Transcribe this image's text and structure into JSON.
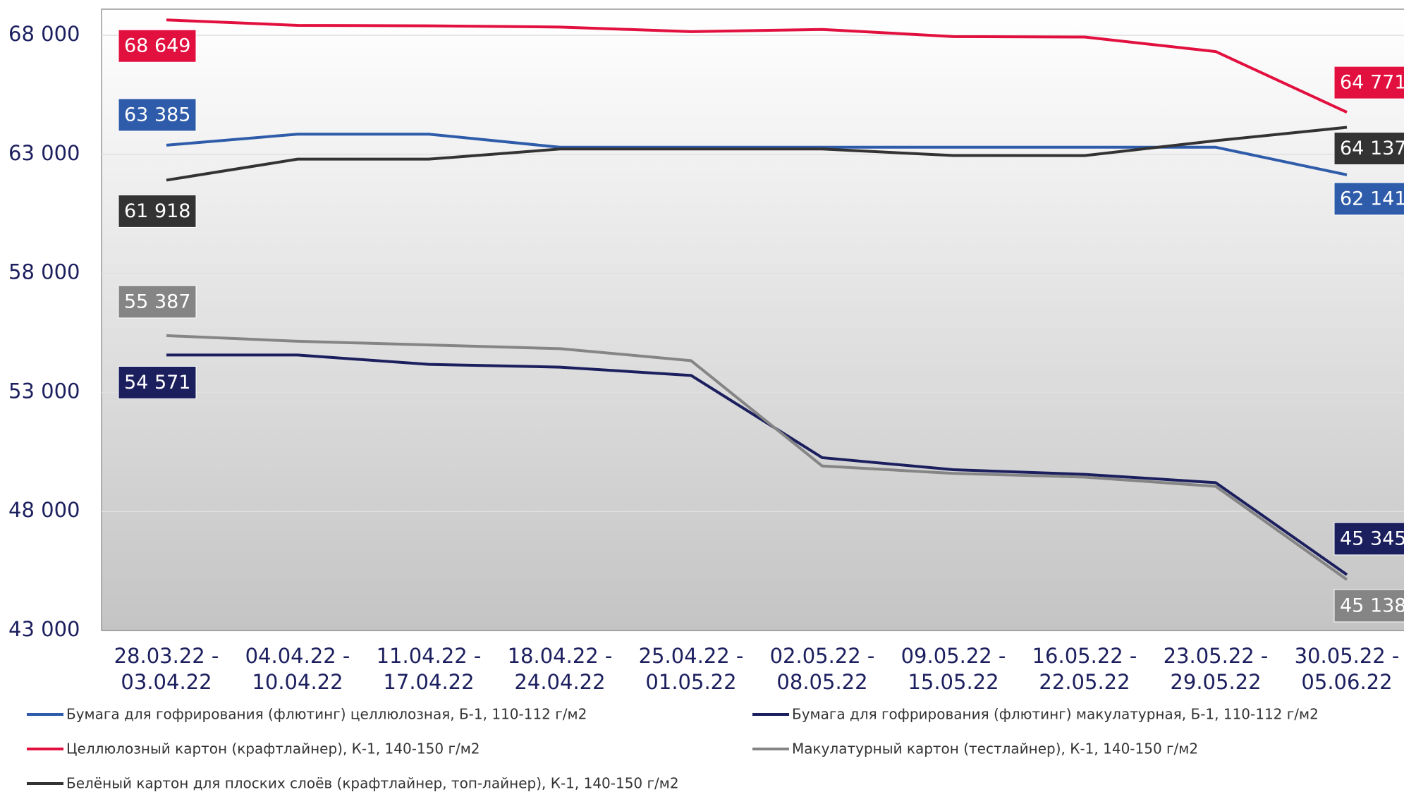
{
  "chart_data": {
    "type": "line",
    "categories": [
      [
        "28.03.22 -",
        "03.04.22"
      ],
      [
        "04.04.22 -",
        "10.04.22"
      ],
      [
        "11.04.22 -",
        "17.04.22"
      ],
      [
        "18.04.22 -",
        "24.04.22"
      ],
      [
        "25.04.22 -",
        "01.05.22"
      ],
      [
        "02.05.22 -",
        "08.05.22"
      ],
      [
        "09.05.22 -",
        "15.05.22"
      ],
      [
        "16.05.22 -",
        "22.05.22"
      ],
      [
        "23.05.22 -",
        "29.05.22"
      ],
      [
        "30.05.22 -",
        "05.06.22"
      ]
    ],
    "series": [
      {
        "name": "Бумага для гофрирования (флютинг) целлюлозная, Б-1, 110-112 г/м2",
        "color": "#2e5caa",
        "values": [
          63385,
          63850,
          63850,
          63300,
          63300,
          63300,
          63300,
          63300,
          63300,
          62141
        ],
        "value_labels": [
          "63 385",
          null,
          null,
          null,
          null,
          null,
          null,
          null,
          null,
          "62 141"
        ]
      },
      {
        "name": "Бумага для гофрирования (флютинг) макулатурная, Б-1, 110-112 г/м2",
        "color": "#1c1f5e",
        "values": [
          54571,
          54571,
          54180,
          54063,
          53714,
          50260,
          49754,
          49560,
          49211,
          45345
        ],
        "value_labels": [
          "54 571",
          null,
          null,
          null,
          null,
          null,
          null,
          null,
          null,
          "45 345"
        ]
      },
      {
        "name": "Целлюлозный картон (крафтлайнер), К-1, 140-150 г/м2",
        "color": "#e2103e",
        "values": [
          68649,
          68420,
          68400,
          68350,
          68155,
          68250,
          67950,
          67930,
          67320,
          64771
        ],
        "value_labels": [
          "68 649",
          null,
          null,
          null,
          null,
          null,
          null,
          null,
          null,
          "64 771"
        ]
      },
      {
        "name": "Макулатурный картон (тестлайнер), К-1, 140-150 г/м2",
        "color": "#858585",
        "values": [
          55387,
          55150,
          54995,
          54840,
          54335,
          49910,
          49600,
          49444,
          49056,
          45138
        ],
        "value_labels": [
          "55 387",
          null,
          null,
          null,
          null,
          null,
          null,
          null,
          null,
          "45 138"
        ]
      },
      {
        "name": "Белёный картон для плоских слоёв (крафтлайнер, топ-лайнер), К-1, 140-150 г/м2",
        "color": "#333333",
        "values": [
          61918,
          62800,
          62800,
          63225,
          63225,
          63225,
          62953,
          62950,
          63575,
          64137
        ],
        "value_labels": [
          "61 918",
          null,
          null,
          null,
          null,
          null,
          null,
          null,
          null,
          "64 137"
        ]
      }
    ],
    "ylim": [
      43000,
      69100
    ],
    "yticks": [
      {
        "value": 43000,
        "label": "43 000"
      },
      {
        "value": 48000,
        "label": "48 000"
      },
      {
        "value": 53000,
        "label": "53 000"
      },
      {
        "value": 58000,
        "label": "58 000"
      },
      {
        "value": 63000,
        "label": "63 000"
      },
      {
        "value": 68000,
        "label": "68 000"
      }
    ],
    "grid": true
  }
}
